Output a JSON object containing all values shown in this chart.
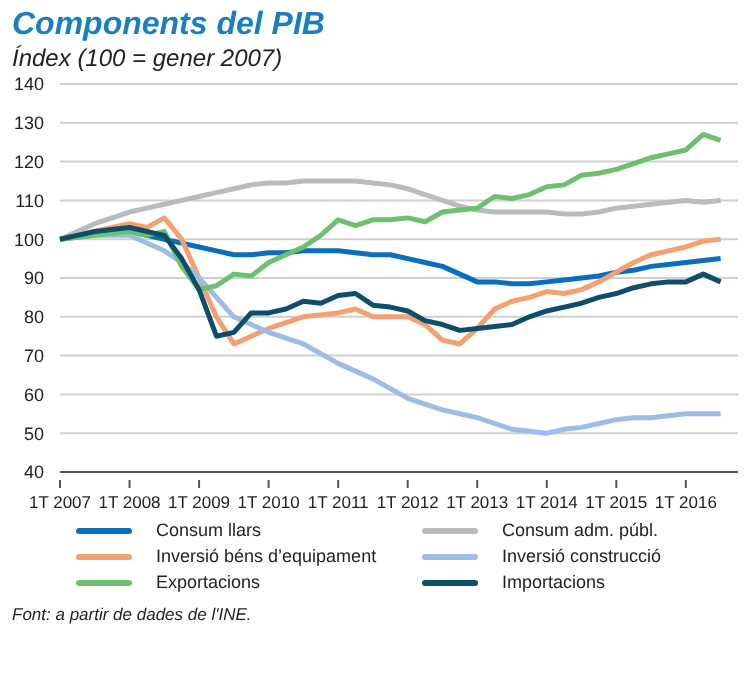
{
  "chart_data": {
    "type": "line",
    "title": "Components del PIB",
    "subtitle": "Índex (100 = gener 2007)",
    "categories": [
      "1T 2007",
      null,
      null,
      null,
      "1T 2008",
      null,
      null,
      null,
      "1T 2009",
      null,
      null,
      null,
      "1T 2010",
      null,
      null,
      null,
      "1T 2011",
      null,
      null,
      null,
      "1T 2012",
      null,
      null,
      null,
      "1T 2013",
      null,
      null,
      null,
      "1T 2014",
      null,
      null,
      null,
      "1T 2015",
      null,
      null,
      null,
      "1T 2016",
      null,
      null
    ],
    "ylim": [
      40,
      140
    ],
    "yticks": [
      40,
      50,
      60,
      70,
      80,
      90,
      100,
      110,
      120,
      130,
      140
    ],
    "grid": "y",
    "legend": "bottom",
    "marker": "none",
    "line_style": "solid",
    "series": [
      {
        "name": "Consum llars",
        "color": "#0a6ebd",
        "values": [
          100,
          101,
          101.5,
          102,
          102,
          101,
          100,
          99,
          98,
          97,
          96,
          96,
          96.5,
          96.5,
          97,
          97,
          97,
          96.5,
          96,
          96,
          95,
          94,
          93,
          91,
          89,
          89,
          88.5,
          88.5,
          89,
          89.5,
          90,
          90.5,
          91.5,
          92,
          93,
          93.5,
          94,
          94.5,
          95
        ]
      },
      {
        "name": "Consum adm. públ.",
        "color": "#b8bcbf",
        "values": [
          100,
          102,
          104,
          105.5,
          107,
          108,
          109,
          110,
          111,
          112,
          113,
          114,
          114.5,
          114.5,
          115,
          115,
          115,
          115,
          114.5,
          114,
          113,
          111.5,
          110,
          108.5,
          107.5,
          107,
          107,
          107,
          107,
          106.5,
          106.5,
          107,
          108,
          108.5,
          109,
          109.5,
          110,
          109.5,
          110
        ]
      },
      {
        "name": "Inversió béns d’equipament",
        "color": "#f4a072",
        "values": [
          100,
          101,
          102,
          103,
          104,
          103,
          105.5,
          100,
          90,
          80,
          73,
          75,
          77,
          78.5,
          80,
          80.5,
          81,
          82,
          80,
          80,
          80,
          78,
          74,
          73,
          77,
          82,
          84,
          85,
          86.5,
          86,
          87,
          89,
          91.5,
          94,
          96,
          97,
          98,
          99.5,
          100
        ]
      },
      {
        "name": "Inversió construcció",
        "color": "#9dbde6",
        "values": [
          100,
          100.5,
          101,
          101,
          101,
          99,
          97,
          94,
          90,
          85,
          80,
          78,
          76,
          74.5,
          73,
          70.5,
          68,
          66,
          64,
          61.5,
          59,
          57.5,
          56,
          55,
          54,
          52.5,
          51,
          50.5,
          50,
          51,
          51.5,
          52.5,
          53.5,
          54,
          54,
          54.5,
          55,
          55,
          55
        ]
      },
      {
        "name": "Exportacions",
        "color": "#6cc070",
        "values": [
          100,
          100.5,
          101,
          101.5,
          102,
          101,
          102,
          93,
          87,
          88,
          91,
          90.5,
          94,
          96,
          98,
          101,
          105,
          103.5,
          105,
          105,
          105.5,
          104.5,
          107,
          107.5,
          108,
          111,
          110.5,
          111.5,
          113.5,
          114,
          116.5,
          117,
          118,
          119.5,
          121,
          122,
          123,
          127,
          125.5
        ]
      },
      {
        "name": "Importacions",
        "color": "#0d4f6b",
        "values": [
          100,
          101,
          102,
          102.5,
          103,
          102,
          101,
          95,
          87,
          75,
          76,
          81,
          81,
          82,
          84,
          83.5,
          85.5,
          86,
          83,
          82.5,
          81.5,
          79,
          78,
          76.5,
          77,
          77.5,
          78,
          80,
          81.5,
          82.5,
          83.5,
          85,
          86,
          87.5,
          88.5,
          89,
          89,
          91,
          89
        ]
      }
    ],
    "annotations": [
      "Font: a partir de dades de l'INE."
    ]
  }
}
